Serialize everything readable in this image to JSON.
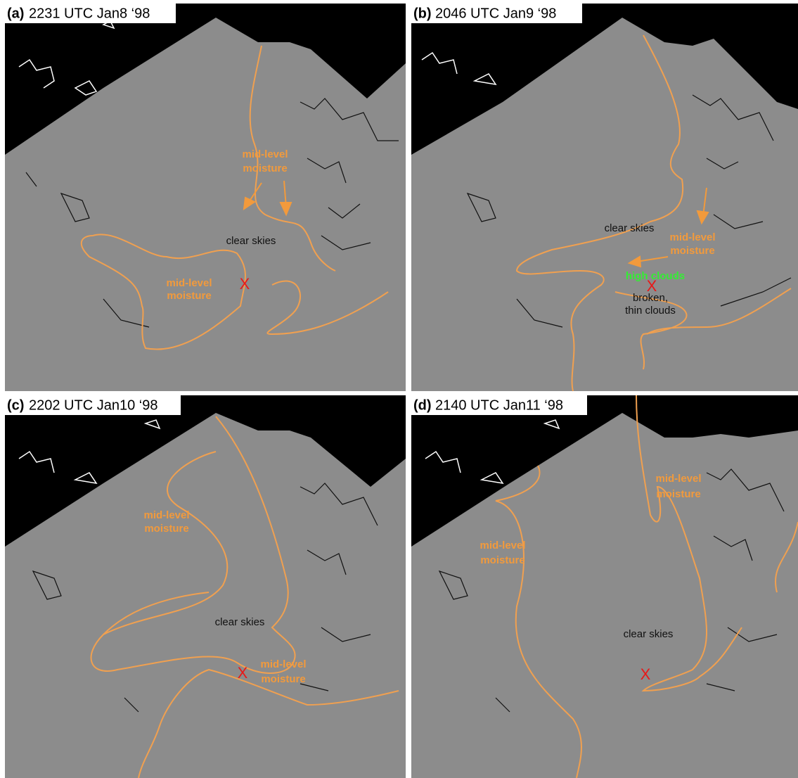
{
  "panels": [
    {
      "letter": "(a)",
      "time": "2231 UTC Jan8 ‘98",
      "annotations": [
        "mid-level",
        "moisture",
        "clear skies",
        "mid-level",
        "moisture"
      ],
      "marker": "X"
    },
    {
      "letter": "(b)",
      "time": "2046 UTC Jan9 ‘98",
      "annotations": [
        "clear skies",
        "mid-level",
        "moisture",
        "high clouds",
        "broken,",
        "thin clouds"
      ],
      "marker": "X"
    },
    {
      "letter": "(c)",
      "time": "2202 UTC Jan10 ‘98",
      "annotations": [
        "mid-level",
        "moisture",
        "clear skies",
        "mid-level",
        "moisture"
      ],
      "marker": "X"
    },
    {
      "letter": "(d)",
      "time": "2140 UTC Jan11 ‘98",
      "annotations": [
        "mid-level",
        "moisture",
        "mid-level",
        "moisture",
        "clear skies"
      ],
      "marker": "X"
    }
  ]
}
